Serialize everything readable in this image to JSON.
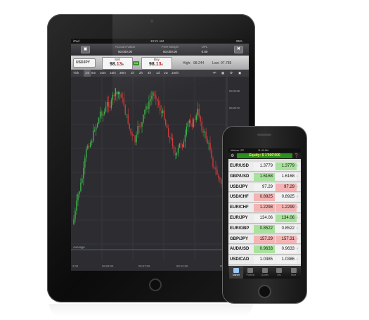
{
  "ipad": {
    "status": {
      "carrier": "iPad",
      "time": "10:21 AM",
      "battery": "95%"
    },
    "account": {
      "account_value_label": "Account Value",
      "account_value": "50,000.00",
      "free_margin_label": "Free Margin",
      "free_margin": "50,000.00",
      "upl_label": "UPL",
      "upl": "0.00"
    },
    "trade": {
      "symbol": "USDJPY",
      "sell_label": "Sell",
      "sell_price": "98.",
      "sell_big": "13",
      "sell_small": "5",
      "spread": "0.6",
      "buy_label": "Buy",
      "buy_price": "98.",
      "buy_big": "13",
      "buy_small": "6",
      "high_label": "High:",
      "high": "98.244",
      "low_label": "Low:",
      "low": "97.789"
    },
    "timeframes": [
      "Tick",
      "1m",
      "5m",
      "10m",
      "15m",
      "30m",
      "1h",
      "2h",
      "4h",
      "1d",
      "1w",
      "1mth"
    ],
    "selected_timeframe": "1m",
    "chart_labels": {
      "indicator": "Average",
      "price_ticks": [
        "98.2328",
        "98.2272"
      ],
      "time_ticks": [
        "2:00",
        "09:03:00",
        "09:07:00",
        "09:12:00",
        "09:15"
      ]
    }
  },
  "iphone": {
    "status": {
      "carrier": "Verizon LTE",
      "time": "11:40 AM"
    },
    "equity": "Equity: $ 1'000'000",
    "rows": [
      {
        "pair": "EUR/USD",
        "sell": "1.3779",
        "buy": "1.3779",
        "sell_color": "#f2f2f2",
        "buy_color": "#a8e39b"
      },
      {
        "pair": "GBP/USD",
        "sell": "1.6168",
        "buy": "1.6168",
        "sell_color": "#a8e39b",
        "buy_color": "#f2f2f2"
      },
      {
        "pair": "USD/JPY",
        "sell": "97.29",
        "buy": "97.29",
        "sell_color": "#f2f2f2",
        "buy_color": "#f4b4b4"
      },
      {
        "pair": "USD/CHF",
        "sell": "0.8925",
        "buy": "0.8925",
        "sell_color": "#f4b4b4",
        "buy_color": "#f2f2f2"
      },
      {
        "pair": "EUR/CHF",
        "sell": "1.2298",
        "buy": "1.2299",
        "sell_color": "#f4b4b4",
        "buy_color": "#f4b4b4"
      },
      {
        "pair": "EUR/JPY",
        "sell": "134.06",
        "buy": "134.06",
        "sell_color": "#f2f2f2",
        "buy_color": "#a8e39b"
      },
      {
        "pair": "EUR/GBP",
        "sell": "0.8522",
        "buy": "0.8522",
        "sell_color": "#a8e39b",
        "buy_color": "#f2f2f2"
      },
      {
        "pair": "GBP/JPY",
        "sell": "157.29",
        "buy": "157.31",
        "sell_color": "#f4b4b4",
        "buy_color": "#f4b4b4"
      },
      {
        "pair": "AUD/USD",
        "sell": "0.9633",
        "buy": "0.9633",
        "sell_color": "#a8e39b",
        "buy_color": "#f2f2f2"
      },
      {
        "pair": "USD/CAD",
        "sell": "1.0385",
        "buy": "1.0386",
        "sell_color": "#f2f2f2",
        "buy_color": "#f2f2f2"
      }
    ],
    "tabs": [
      {
        "label": "Market",
        "icon": "chart-icon"
      },
      {
        "label": "Portfolio",
        "icon": "portfolio-icon"
      },
      {
        "label": "Quotes",
        "icon": "quotes-icon"
      },
      {
        "label": "Info",
        "icon": "info-icon"
      },
      {
        "label": "More",
        "icon": "more-icon"
      }
    ]
  },
  "colors": {
    "up": "#3cb34a",
    "down": "#d23a3a",
    "buy_green": "#2a8f1c",
    "equity_text": "#e7f45a"
  }
}
